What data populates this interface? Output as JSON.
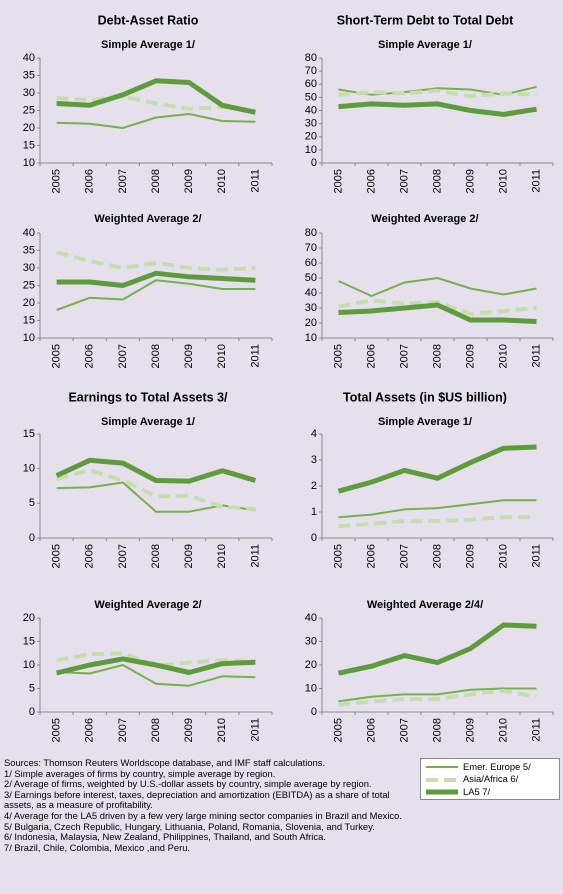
{
  "chart_data": [
    {
      "type": "line",
      "title": "Debt-Asset Ratio",
      "subtitle": "Simple Average 1/",
      "categories": [
        "2005",
        "2006",
        "2007",
        "2008",
        "2009",
        "2010",
        "2011"
      ],
      "series": [
        {
          "name": "Emer. Europe 5/",
          "color": "#77b04f",
          "line_style": "solid",
          "line_width": 2,
          "values": [
            21.5,
            21.2,
            20,
            23,
            24,
            22,
            21.8
          ]
        },
        {
          "name": "Asia/Africa 6/",
          "color": "#c5deb0",
          "line_style": "dashed",
          "line_width": 4,
          "values": [
            28.5,
            28,
            29,
            27,
            25.5,
            26,
            25
          ]
        },
        {
          "name": "LA5 7/",
          "color": "#5e9b3c",
          "line_style": "solid",
          "line_width": 5,
          "values": [
            27,
            26.5,
            29.5,
            33.5,
            33,
            26.5,
            24.5
          ]
        }
      ],
      "ylim": [
        10,
        40
      ],
      "yticks": [
        10,
        15,
        20,
        25,
        30,
        35,
        40
      ]
    },
    {
      "type": "line",
      "title": "Short-Term Debt to Total Debt",
      "subtitle": "Simple Average 1/",
      "categories": [
        "2005",
        "2006",
        "2007",
        "2008",
        "2009",
        "2010",
        "2011"
      ],
      "series": [
        {
          "color": "#77b04f",
          "line_style": "solid",
          "line_width": 2,
          "values": [
            56,
            52,
            54,
            57,
            56,
            52,
            58
          ]
        },
        {
          "color": "#c5deb0",
          "line_style": "dashed",
          "line_width": 4,
          "values": [
            52,
            54,
            53,
            55,
            51,
            53,
            52
          ]
        },
        {
          "color": "#5e9b3c",
          "line_style": "solid",
          "line_width": 5,
          "values": [
            43,
            45,
            44,
            45,
            40,
            37,
            41
          ]
        }
      ],
      "ylim": [
        0,
        80
      ],
      "yticks": [
        0,
        10,
        20,
        30,
        40,
        50,
        60,
        70,
        80
      ]
    },
    {
      "type": "line",
      "subtitle": "Weighted Average 2/",
      "categories": [
        "2005",
        "2006",
        "2007",
        "2008",
        "2009",
        "2010",
        "2011"
      ],
      "series": [
        {
          "color": "#77b04f",
          "line_style": "solid",
          "line_width": 2,
          "values": [
            18,
            21.5,
            21,
            26.5,
            25.5,
            24,
            24
          ]
        },
        {
          "color": "#c5deb0",
          "line_style": "dashed",
          "line_width": 4,
          "values": [
            34.5,
            32,
            30,
            31.5,
            30,
            29.5,
            30
          ]
        },
        {
          "color": "#5e9b3c",
          "line_style": "solid",
          "line_width": 5,
          "values": [
            26,
            26,
            25,
            28.5,
            27.5,
            27,
            26.5
          ]
        }
      ],
      "ylim": [
        10,
        40
      ],
      "yticks": [
        10,
        15,
        20,
        25,
        30,
        35,
        40
      ]
    },
    {
      "type": "line",
      "subtitle": "Weighted Average 2/",
      "categories": [
        "2005",
        "2006",
        "2007",
        "2008",
        "2009",
        "2010",
        "2011"
      ],
      "series": [
        {
          "color": "#77b04f",
          "line_style": "solid",
          "line_width": 2,
          "values": [
            48,
            38,
            47,
            50,
            43,
            39,
            43
          ]
        },
        {
          "color": "#c5deb0",
          "line_style": "dashed",
          "line_width": 4,
          "values": [
            31,
            35,
            33,
            34,
            26,
            28,
            30
          ]
        },
        {
          "color": "#5e9b3c",
          "line_style": "solid",
          "line_width": 5,
          "values": [
            27,
            28,
            30,
            32,
            22,
            22,
            21
          ]
        }
      ],
      "ylim": [
        10,
        80
      ],
      "yticks": [
        10,
        20,
        30,
        40,
        50,
        60,
        70,
        80
      ]
    },
    {
      "type": "line",
      "title": "Earnings to Total Assets 3/",
      "subtitle": "Simple Average 1/",
      "categories": [
        "2005",
        "2006",
        "2007",
        "2008",
        "2009",
        "2010",
        "2011"
      ],
      "series": [
        {
          "color": "#77b04f",
          "line_style": "solid",
          "line_width": 2,
          "values": [
            7.2,
            7.3,
            8,
            3.8,
            3.8,
            4.7,
            4
          ]
        },
        {
          "color": "#c5deb0",
          "line_style": "dashed",
          "line_width": 4,
          "values": [
            8.5,
            9.8,
            8.3,
            6,
            6.1,
            4.5,
            4.2
          ]
        },
        {
          "color": "#5e9b3c",
          "line_style": "solid",
          "line_width": 5,
          "values": [
            9,
            11.2,
            10.8,
            8.3,
            8.2,
            9.7,
            8.3
          ]
        }
      ],
      "ylim": [
        0,
        15
      ],
      "yticks": [
        0,
        5,
        10,
        15
      ]
    },
    {
      "type": "line",
      "title": "Total Assets (in $US billion)",
      "subtitle": "Simple Average 1/",
      "categories": [
        "2005",
        "2006",
        "2007",
        "2008",
        "2009",
        "2010",
        "2011"
      ],
      "series": [
        {
          "color": "#77b04f",
          "line_style": "solid",
          "line_width": 2,
          "values": [
            0.8,
            0.9,
            1.1,
            1.15,
            1.3,
            1.45,
            1.45
          ]
        },
        {
          "color": "#c5deb0",
          "line_style": "dashed",
          "line_width": 4,
          "values": [
            0.45,
            0.55,
            0.65,
            0.65,
            0.7,
            0.8,
            0.8
          ]
        },
        {
          "color": "#5e9b3c",
          "line_style": "solid",
          "line_width": 5,
          "values": [
            1.8,
            2.15,
            2.6,
            2.3,
            2.9,
            3.45,
            3.5
          ]
        }
      ],
      "ylim": [
        0,
        4
      ],
      "yticks": [
        0,
        1,
        2,
        3,
        4
      ]
    },
    {
      "type": "line",
      "subtitle": "Weighted Average 2/",
      "categories": [
        "2005",
        "2006",
        "2007",
        "2008",
        "2009",
        "2010",
        "2011"
      ],
      "series": [
        {
          "color": "#77b04f",
          "line_style": "solid",
          "line_width": 2,
          "values": [
            8.5,
            8.2,
            10,
            6,
            5.6,
            7.6,
            7.4
          ]
        },
        {
          "color": "#c5deb0",
          "line_style": "dashed",
          "line_width": 4,
          "values": [
            11,
            12.3,
            12.5,
            9.8,
            10.5,
            11,
            10.7
          ]
        },
        {
          "color": "#5e9b3c",
          "line_style": "solid",
          "line_width": 5,
          "values": [
            8.3,
            10,
            11.3,
            10,
            8.4,
            10.3,
            10.6
          ]
        }
      ],
      "ylim": [
        0,
        20
      ],
      "yticks": [
        0,
        5,
        10,
        15,
        20
      ]
    },
    {
      "type": "line",
      "subtitle": "Weighted Average 2/4/",
      "categories": [
        "2005",
        "2006",
        "2007",
        "2008",
        "2009",
        "2010",
        "2011"
      ],
      "series": [
        {
          "color": "#77b04f",
          "line_style": "solid",
          "line_width": 2,
          "values": [
            4.5,
            6.5,
            7.5,
            7.5,
            9.5,
            10,
            10
          ]
        },
        {
          "color": "#c5deb0",
          "line_style": "dashed",
          "line_width": 4,
          "values": [
            3,
            4.5,
            5.5,
            5.5,
            7.5,
            9,
            6.5
          ]
        },
        {
          "color": "#5e9b3c",
          "line_style": "solid",
          "line_width": 5,
          "values": [
            16.5,
            19.5,
            24,
            21,
            27,
            37,
            36.5
          ]
        }
      ],
      "ylim": [
        0,
        40
      ],
      "yticks": [
        0,
        10,
        20,
        30,
        40
      ]
    }
  ],
  "notes": [
    "Sources: Thomson Reuters Worldscope database, and IMF staff calculations.",
    "1/ Simple averages of firms by country, simple average by region.",
    "2/ Average of firms, weighted by U.S.-dollar assets by country, simple average by region.",
    "3/ Earnings before interest, taxes, depreciation and amortization (EBITDA) as a share of total assets, as a measure of profitability.",
    "4/ Average for the LA5 driven by a few very large mining sector companies in Brazil and Mexico.",
    "5/ Bulgaria, Czech Republic, Hungary, Lithuania, Poland, Romania, Slovenia, and Turkey.",
    "6/ Indonesia, Malaysia, New Zealand, Philippines, Thailand, and South Africa.",
    "7/ Brazil, Chile, Colombia, Mexico ,and Peru."
  ]
}
